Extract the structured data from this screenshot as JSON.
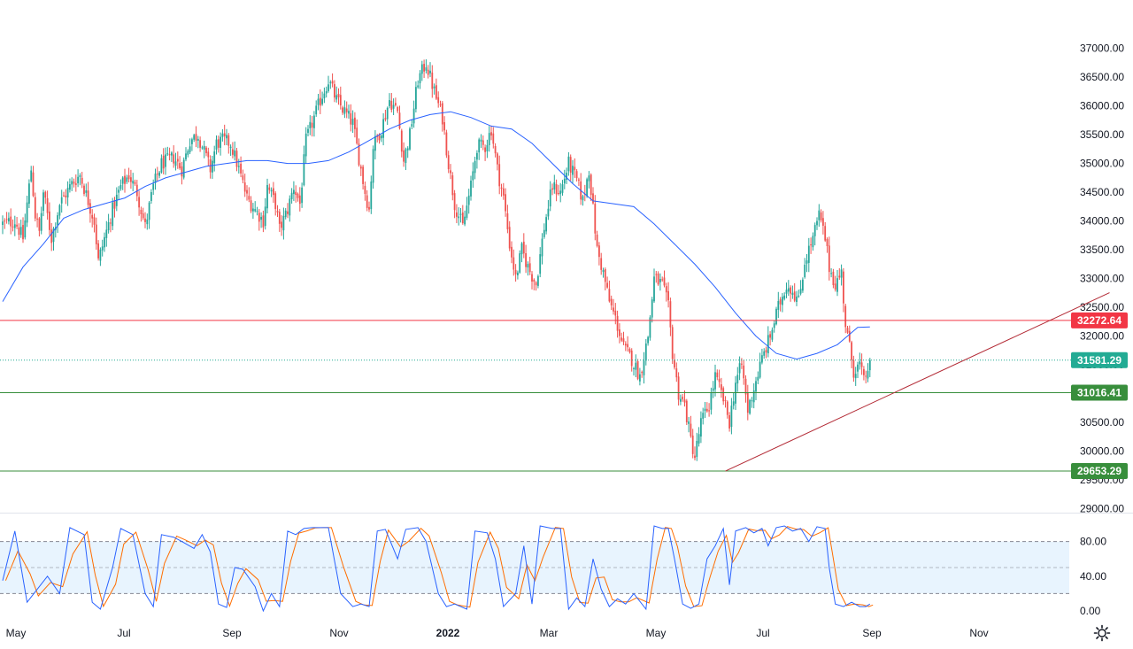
{
  "chart_data": {
    "type": "candlestick",
    "price_axis": {
      "ylim": [
        28900,
        37100
      ],
      "ticks": [
        "37000.00",
        "36500.00",
        "36000.00",
        "35500.00",
        "35000.00",
        "34500.00",
        "34000.00",
        "33500.00",
        "33000.00",
        "32500.00",
        "32000.00",
        "31500.00",
        "31000.00",
        "30500.00",
        "30000.00",
        "29500.00",
        "29000.00"
      ]
    },
    "time_axis": {
      "labels": [
        "May",
        "Jul",
        "Sep",
        "Nov",
        "2022",
        "Mar",
        "May",
        "Jul",
        "Sep",
        "Nov"
      ],
      "bold_label": "2022"
    },
    "levels": [
      {
        "value": 32272.64,
        "label": "32272.64",
        "color": "#f23645",
        "style": "solid"
      },
      {
        "value": 31581.29,
        "label": "31581.29",
        "color": "#22ab94",
        "style": "dotted"
      },
      {
        "value": 31016.41,
        "label": "31016.41",
        "color": "#388e3c",
        "style": "solid"
      },
      {
        "value": 29653.29,
        "label": "29653.29",
        "color": "#388e3c",
        "style": "solid"
      }
    ],
    "trendline": {
      "from": {
        "index": 355,
        "price": 29653
      },
      "to": {
        "index": 485,
        "price": 32600
      },
      "color": "#b22833"
    },
    "anchors": [
      [
        0,
        33950
      ],
      [
        6,
        34000
      ],
      [
        10,
        33700
      ],
      [
        14,
        34900
      ],
      [
        16,
        34100
      ],
      [
        18,
        33800
      ],
      [
        20,
        34500
      ],
      [
        24,
        33700
      ],
      [
        28,
        34300
      ],
      [
        34,
        34650
      ],
      [
        38,
        34800
      ],
      [
        42,
        34350
      ],
      [
        45,
        34000
      ],
      [
        47,
        33300
      ],
      [
        50,
        33700
      ],
      [
        54,
        34200
      ],
      [
        58,
        34600
      ],
      [
        62,
        34800
      ],
      [
        66,
        34500
      ],
      [
        70,
        33900
      ],
      [
        74,
        34600
      ],
      [
        78,
        35000
      ],
      [
        84,
        35100
      ],
      [
        88,
        34900
      ],
      [
        92,
        35400
      ],
      [
        96,
        35500
      ],
      [
        99,
        35200
      ],
      [
        102,
        34900
      ],
      [
        105,
        35350
      ],
      [
        108,
        35400
      ],
      [
        112,
        35350
      ],
      [
        116,
        34900
      ],
      [
        120,
        34400
      ],
      [
        124,
        34200
      ],
      [
        128,
        34000
      ],
      [
        130,
        34600
      ],
      [
        134,
        34300
      ],
      [
        136,
        33850
      ],
      [
        140,
        34200
      ],
      [
        143,
        34600
      ],
      [
        146,
        34300
      ],
      [
        149,
        35400
      ],
      [
        152,
        35700
      ],
      [
        156,
        36100
      ],
      [
        160,
        36450
      ],
      [
        164,
        36100
      ],
      [
        168,
        35900
      ],
      [
        172,
        35700
      ],
      [
        175,
        35100
      ],
      [
        178,
        34500
      ],
      [
        180,
        34200
      ],
      [
        182,
        35300
      ],
      [
        186,
        35600
      ],
      [
        190,
        36100
      ],
      [
        194,
        35900
      ],
      [
        197,
        35050
      ],
      [
        200,
        35500
      ],
      [
        204,
        36450
      ],
      [
        208,
        36750
      ],
      [
        212,
        36250
      ],
      [
        216,
        35800
      ],
      [
        219,
        35000
      ],
      [
        222,
        34300
      ],
      [
        226,
        33900
      ],
      [
        230,
        34600
      ],
      [
        233,
        35300
      ],
      [
        237,
        35300
      ],
      [
        240,
        35600
      ],
      [
        243,
        34900
      ],
      [
        246,
        34400
      ],
      [
        249,
        33600
      ],
      [
        252,
        33000
      ],
      [
        255,
        33500
      ],
      [
        258,
        33200
      ],
      [
        262,
        32900
      ],
      [
        266,
        33900
      ],
      [
        270,
        34600
      ],
      [
        274,
        34500
      ],
      [
        278,
        35000
      ],
      [
        282,
        34700
      ],
      [
        285,
        34350
      ],
      [
        288,
        34900
      ],
      [
        290,
        34200
      ],
      [
        292,
        33500
      ],
      [
        295,
        33100
      ],
      [
        298,
        32600
      ],
      [
        301,
        32300
      ],
      [
        305,
        31800
      ],
      [
        309,
        31600
      ],
      [
        313,
        31300
      ],
      [
        317,
        32000
      ],
      [
        320,
        33000
      ],
      [
        324,
        32900
      ],
      [
        327,
        32500
      ],
      [
        329,
        31700
      ],
      [
        332,
        31000
      ],
      [
        335,
        30800
      ],
      [
        338,
        30200
      ],
      [
        340,
        29900
      ],
      [
        343,
        30500
      ],
      [
        347,
        30800
      ],
      [
        350,
        31300
      ],
      [
        354,
        30900
      ],
      [
        357,
        30500
      ],
      [
        360,
        31200
      ],
      [
        363,
        31500
      ],
      [
        366,
        30700
      ],
      [
        369,
        31100
      ],
      [
        373,
        31600
      ],
      [
        377,
        32000
      ],
      [
        381,
        32500
      ],
      [
        385,
        32900
      ],
      [
        388,
        32800
      ],
      [
        391,
        32600
      ],
      [
        394,
        33300
      ],
      [
        398,
        33700
      ],
      [
        401,
        34100
      ],
      [
        404,
        33700
      ],
      [
        406,
        33200
      ],
      [
        409,
        32900
      ],
      [
        412,
        33100
      ],
      [
        414,
        32200
      ],
      [
        416,
        31800
      ],
      [
        418,
        31400
      ],
      [
        421,
        31500
      ],
      [
        423,
        31200
      ],
      [
        426,
        31581
      ]
    ],
    "ma": {
      "color": "#2962ff",
      "points": [
        [
          0,
          32600
        ],
        [
          10,
          33200
        ],
        [
          20,
          33600
        ],
        [
          30,
          34050
        ],
        [
          40,
          34200
        ],
        [
          50,
          34300
        ],
        [
          60,
          34400
        ],
        [
          70,
          34600
        ],
        [
          80,
          34750
        ],
        [
          90,
          34850
        ],
        [
          100,
          34950
        ],
        [
          110,
          35000
        ],
        [
          120,
          35050
        ],
        [
          130,
          35050
        ],
        [
          140,
          35000
        ],
        [
          150,
          35000
        ],
        [
          160,
          35050
        ],
        [
          170,
          35200
        ],
        [
          180,
          35400
        ],
        [
          190,
          35600
        ],
        [
          200,
          35750
        ],
        [
          210,
          35850
        ],
        [
          220,
          35900
        ],
        [
          230,
          35800
        ],
        [
          240,
          35650
        ],
        [
          250,
          35600
        ],
        [
          260,
          35350
        ],
        [
          270,
          35000
        ],
        [
          280,
          34650
        ],
        [
          290,
          34350
        ],
        [
          300,
          34300
        ],
        [
          310,
          34250
        ],
        [
          320,
          33950
        ],
        [
          330,
          33600
        ],
        [
          340,
          33250
        ],
        [
          350,
          32850
        ],
        [
          360,
          32400
        ],
        [
          370,
          32000
        ],
        [
          380,
          31700
        ],
        [
          390,
          31600
        ],
        [
          400,
          31700
        ],
        [
          410,
          31850
        ],
        [
          420,
          32150
        ],
        [
          426,
          32160
        ]
      ]
    },
    "oscillator": {
      "type": "stochastic",
      "ylim": [
        -2,
        102
      ],
      "ticks": [
        "80.00",
        "40.00",
        "0.00"
      ],
      "band": {
        "upper": 80,
        "middle": 50,
        "lower": 20
      },
      "k_color": "#2962ff",
      "d_color": "#ff6d00",
      "k_points": [
        [
          0,
          35
        ],
        [
          6,
          92
        ],
        [
          12,
          10
        ],
        [
          16,
          22
        ],
        [
          22,
          40
        ],
        [
          28,
          20
        ],
        [
          33,
          96
        ],
        [
          40,
          88
        ],
        [
          44,
          10
        ],
        [
          48,
          2
        ],
        [
          54,
          50
        ],
        [
          58,
          95
        ],
        [
          64,
          88
        ],
        [
          70,
          20
        ],
        [
          74,
          5
        ],
        [
          78,
          88
        ],
        [
          84,
          85
        ],
        [
          88,
          80
        ],
        [
          94,
          72
        ],
        [
          98,
          88
        ],
        [
          102,
          68
        ],
        [
          106,
          8
        ],
        [
          110,
          4
        ],
        [
          114,
          50
        ],
        [
          118,
          48
        ],
        [
          124,
          28
        ],
        [
          128,
          0
        ],
        [
          132,
          20
        ],
        [
          136,
          5
        ],
        [
          140,
          92
        ],
        [
          144,
          88
        ],
        [
          148,
          95
        ],
        [
          152,
          96
        ],
        [
          156,
          96
        ],
        [
          160,
          96
        ],
        [
          166,
          20
        ],
        [
          172,
          5
        ],
        [
          176,
          8
        ],
        [
          180,
          5
        ],
        [
          184,
          92
        ],
        [
          188,
          94
        ],
        [
          194,
          60
        ],
        [
          198,
          94
        ],
        [
          204,
          96
        ],
        [
          208,
          80
        ],
        [
          214,
          20
        ],
        [
          218,
          5
        ],
        [
          222,
          8
        ],
        [
          228,
          2
        ],
        [
          232,
          92
        ],
        [
          238,
          90
        ],
        [
          242,
          60
        ],
        [
          246,
          5
        ],
        [
          252,
          20
        ],
        [
          256,
          75
        ],
        [
          260,
          8
        ],
        [
          264,
          98
        ],
        [
          270,
          95
        ],
        [
          274,
          95
        ],
        [
          278,
          2
        ],
        [
          282,
          15
        ],
        [
          286,
          5
        ],
        [
          290,
          60
        ],
        [
          294,
          25
        ],
        [
          298,
          5
        ],
        [
          302,
          14
        ],
        [
          306,
          8
        ],
        [
          310,
          20
        ],
        [
          316,
          2
        ],
        [
          320,
          98
        ],
        [
          324,
          95
        ],
        [
          327,
          95
        ],
        [
          330,
          60
        ],
        [
          334,
          8
        ],
        [
          338,
          3
        ],
        [
          342,
          8
        ],
        [
          346,
          60
        ],
        [
          350,
          75
        ],
        [
          354,
          95
        ],
        [
          357,
          30
        ],
        [
          360,
          92
        ],
        [
          365,
          96
        ],
        [
          369,
          90
        ],
        [
          373,
          95
        ],
        [
          376,
          75
        ],
        [
          380,
          96
        ],
        [
          384,
          98
        ],
        [
          388,
          92
        ],
        [
          392,
          95
        ],
        [
          396,
          80
        ],
        [
          400,
          97
        ],
        [
          404,
          95
        ],
        [
          406,
          50
        ],
        [
          409,
          8
        ],
        [
          413,
          5
        ],
        [
          417,
          10
        ],
        [
          421,
          5
        ],
        [
          424,
          5
        ],
        [
          426,
          8
        ]
      ]
    }
  }
}
